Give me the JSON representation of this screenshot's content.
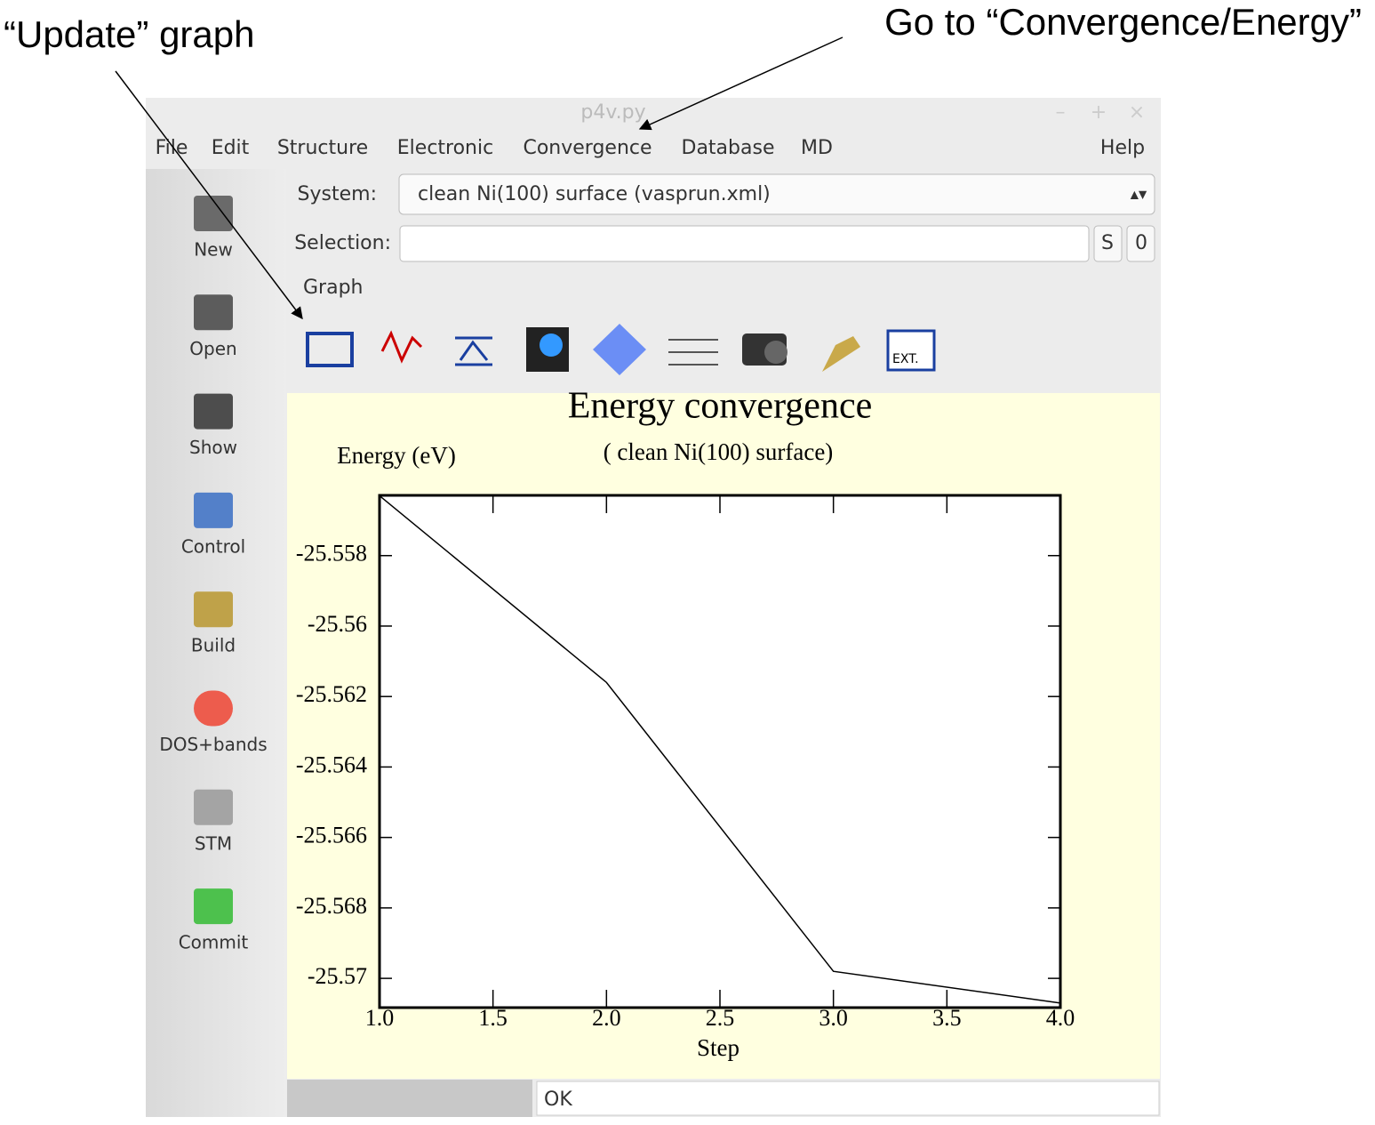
{
  "annotations": {
    "update": "“Update” graph",
    "goto": "Go to “Convergence/Energy”"
  },
  "window": {
    "title": "p4v.py",
    "menu": [
      "File",
      "Edit",
      "Structure",
      "Electronic",
      "Convergence",
      "Database",
      "MD"
    ],
    "help": "Help"
  },
  "sidebar": [
    "New",
    "Open",
    "Show",
    "Control",
    "Build",
    "DOS+bands",
    "STM",
    "Commit"
  ],
  "form": {
    "system_label": "System:",
    "system_value": "clean Ni(100) surface (vasprun.xml)",
    "selection_label": "Selection:",
    "s_button": "S",
    "o_button": "0",
    "graph_label": "Graph",
    "ext_icon": "EXT."
  },
  "status": "OK",
  "chart_data": {
    "type": "line",
    "title": "Energy convergence",
    "subtitle": "( clean Ni(100) surface)",
    "y_label": "Energy (eV)",
    "x_label": "Step",
    "color": "#000000",
    "x": [
      1,
      2,
      3,
      4
    ],
    "values": [
      -25.5563,
      -25.5616,
      -25.5698,
      -25.5707
    ],
    "xlim": [
      1,
      4
    ],
    "xticks": [
      {
        "value": 1,
        "label": "1.0"
      },
      1.5,
      {
        "value": 2,
        "label": "2.0"
      },
      2.5,
      {
        "value": 3,
        "label": "3.0"
      },
      3.5,
      {
        "value": 4,
        "label": "4.0"
      }
    ],
    "ylim": [
      -25.57083,
      -25.55629
    ],
    "yticks": [
      -25.558,
      -25.56,
      -25.562,
      -25.564,
      -25.566,
      -25.568,
      -25.57
    ],
    "grid": false
  }
}
